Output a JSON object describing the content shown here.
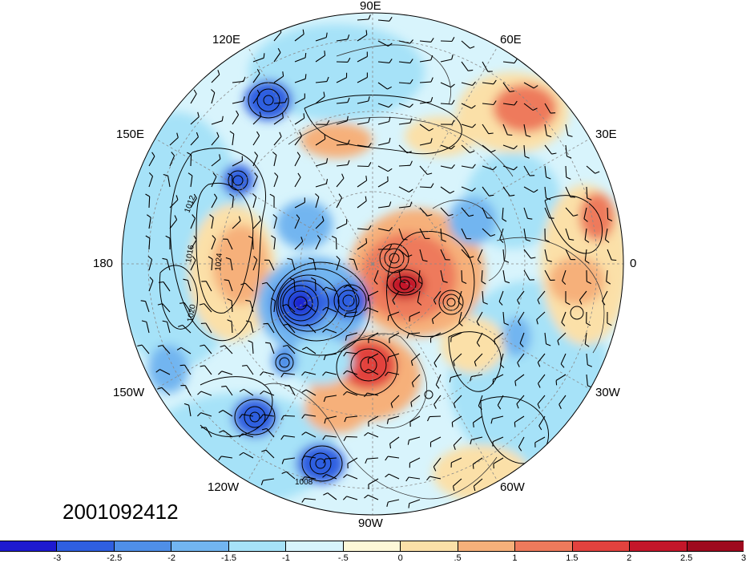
{
  "map": {
    "projection": "north-polar-stereographic",
    "longitude_labels": [
      {
        "id": "90E",
        "text": "90E"
      },
      {
        "id": "60E",
        "text": "60E"
      },
      {
        "id": "120E",
        "text": "120E"
      },
      {
        "id": "30E",
        "text": "30E"
      },
      {
        "id": "150E",
        "text": "150E"
      },
      {
        "id": "0",
        "text": "0"
      },
      {
        "id": "180",
        "text": "180"
      },
      {
        "id": "150W",
        "text": "150W"
      },
      {
        "id": "30W",
        "text": "30W"
      },
      {
        "id": "120W",
        "text": "120W"
      },
      {
        "id": "60W",
        "text": "60W"
      },
      {
        "id": "90W",
        "text": "90W"
      }
    ],
    "contour_labels": [
      "1012",
      "1016",
      "1020",
      "1024",
      "1008"
    ],
    "timestamp": "2001092412"
  },
  "colorbar": {
    "colors": [
      "#1e1ad0",
      "#2f5fe0",
      "#4f8fe8",
      "#72b5f0",
      "#a6e2f8",
      "#d8f4fc",
      "#fdf8d8",
      "#fbe0a8",
      "#f6b07a",
      "#ee7a5c",
      "#e2423e",
      "#c4162a",
      "#9e0a1e"
    ],
    "tick_labels": [
      "-3",
      "-2.5",
      "-2",
      "-1.5",
      "-1",
      "-.5",
      "0",
      ".5",
      "1",
      "1.5",
      "2",
      "2.5",
      "3"
    ]
  }
}
